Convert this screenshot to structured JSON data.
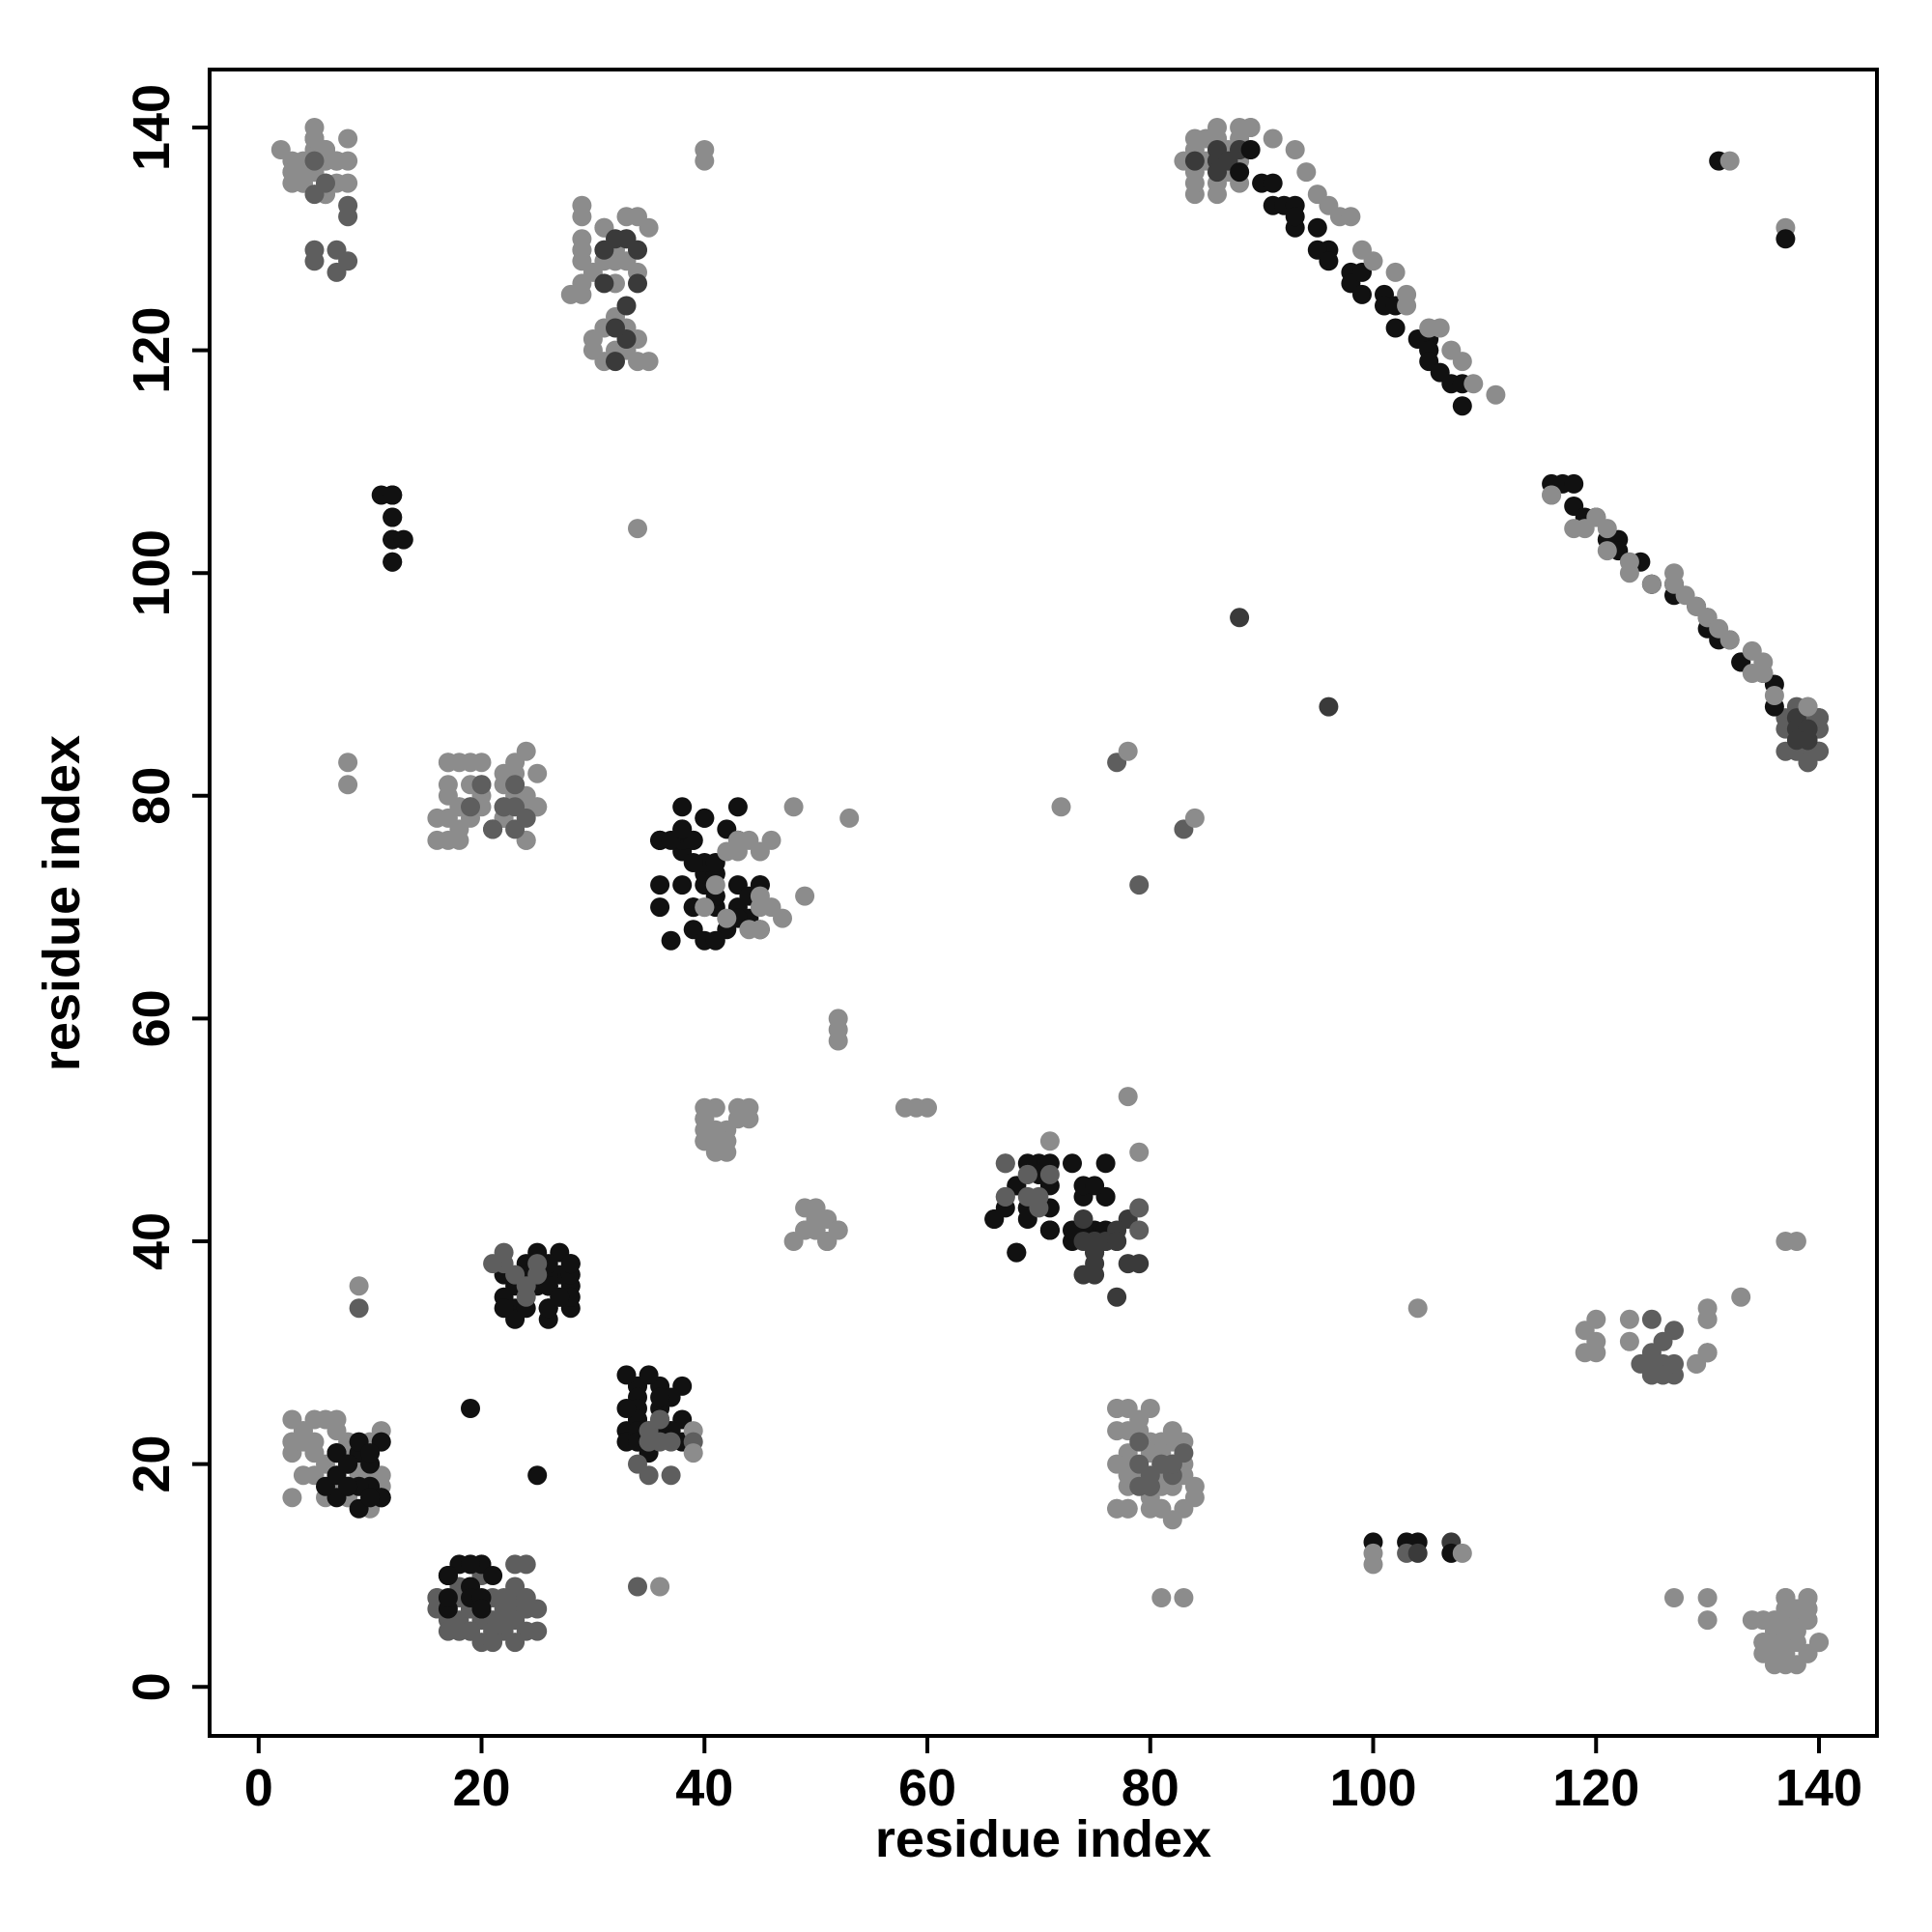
{
  "chart_data": {
    "type": "scatter",
    "title": "",
    "xlabel": "residue index",
    "ylabel": "residue index",
    "xlim": [
      -4.4,
      145.2
    ],
    "ylim": [
      -4.4,
      145.2
    ],
    "xticks": [
      0,
      20,
      40,
      60,
      80,
      100,
      120,
      140
    ],
    "yticks": [
      0,
      20,
      40,
      60,
      80,
      100,
      120,
      140
    ],
    "grid": false,
    "legend": "none",
    "marker": "filled-circle",
    "palette": {
      "black": "#111111",
      "dark": "#3a3a3a",
      "mid": "#5e5e5e",
      "light": "#8c8c8c"
    },
    "clusters": [
      {
        "x": [
          2,
          8
        ],
        "y": [
          134,
          140
        ],
        "count": 38,
        "shade": "light"
      },
      {
        "x": [
          4,
          8
        ],
        "y": [
          127,
          137
        ],
        "count": 10,
        "shade": "mid"
      },
      {
        "x": [
          28,
          35
        ],
        "y": [
          118,
          133
        ],
        "count": 36,
        "shade": "light"
      },
      {
        "x": [
          31,
          34
        ],
        "y": [
          119,
          130
        ],
        "count": 10,
        "shade": "dark"
      },
      {
        "x": [
          11,
          13
        ],
        "y": [
          100,
          108
        ],
        "count": 12,
        "shade": "black"
      },
      {
        "x": [
          16,
          25
        ],
        "y": [
          76,
          84
        ],
        "count": 40,
        "shade": "light"
      },
      {
        "x": [
          19,
          24
        ],
        "y": [
          77,
          82
        ],
        "count": 10,
        "shade": "mid"
      },
      {
        "x": [
          36,
          45
        ],
        "y": [
          67,
          79
        ],
        "count": 45,
        "shade": "black"
      },
      {
        "x": [
          40,
          46
        ],
        "y": [
          67,
          77
        ],
        "count": 15,
        "shade": "light"
      },
      {
        "x": [
          40,
          44
        ],
        "y": [
          48,
          52
        ],
        "count": 18,
        "shade": "light"
      },
      {
        "x": [
          48,
          52
        ],
        "y": [
          40,
          43
        ],
        "count": 18,
        "shade": "light"
      },
      {
        "x": [
          3,
          11
        ],
        "y": [
          16,
          25
        ],
        "count": 45,
        "shade": "light"
      },
      {
        "x": [
          6,
          11
        ],
        "y": [
          16,
          22
        ],
        "count": 22,
        "shade": "black"
      },
      {
        "x": [
          16,
          25
        ],
        "y": [
          4,
          11
        ],
        "count": 50,
        "shade": "mid"
      },
      {
        "x": [
          16,
          21
        ],
        "y": [
          7,
          11
        ],
        "count": 14,
        "shade": "black"
      },
      {
        "x": [
          22,
          28
        ],
        "y": [
          33,
          39
        ],
        "count": 35,
        "shade": "black"
      },
      {
        "x": [
          21,
          26
        ],
        "y": [
          35,
          39
        ],
        "count": 8,
        "shade": "mid"
      },
      {
        "x": [
          33,
          38
        ],
        "y": [
          21,
          28
        ],
        "count": 30,
        "shade": "black"
      },
      {
        "x": [
          33,
          38
        ],
        "y": [
          18,
          24
        ],
        "count": 8,
        "shade": "mid"
      },
      {
        "x": [
          66,
          76
        ],
        "y": [
          39,
          47
        ],
        "count": 35,
        "shade": "black"
      },
      {
        "x": [
          66,
          72
        ],
        "y": [
          43,
          47
        ],
        "count": 10,
        "shade": "mid"
      },
      {
        "x": [
          74,
          79
        ],
        "y": [
          35,
          42
        ],
        "count": 16,
        "shade": "dark"
      },
      {
        "x": [
          76,
          84
        ],
        "y": [
          15,
          25
        ],
        "count": 45,
        "shade": "light"
      },
      {
        "x": [
          79,
          83
        ],
        "y": [
          17,
          22
        ],
        "count": 12,
        "shade": "mid"
      },
      {
        "x": [
          83,
          89
        ],
        "y": [
          134,
          140
        ],
        "count": 32,
        "shade": "light"
      },
      {
        "x": [
          84,
          88
        ],
        "y": [
          136,
          139
        ],
        "count": 8,
        "shade": "dark"
      },
      {
        "x": [
          137,
          140
        ],
        "y": [
          83,
          88
        ],
        "count": 24,
        "shade": "mid"
      },
      {
        "x": [
          137,
          140
        ],
        "y": [
          84,
          87
        ],
        "count": 8,
        "shade": "dark"
      },
      {
        "x": [
          134,
          140
        ],
        "y": [
          2,
          8
        ],
        "count": 45,
        "shade": "light"
      },
      {
        "x": [
          124,
          127
        ],
        "y": [
          28,
          33
        ],
        "count": 14,
        "shade": "mid"
      },
      {
        "x": [
          118,
          124
        ],
        "y": [
          30,
          33
        ],
        "count": 7,
        "shade": "light"
      },
      {
        "x": [
          129,
          131
        ],
        "y": [
          28,
          35
        ],
        "count": 8,
        "shade": "light"
      }
    ],
    "diagonal_bands": [
      {
        "from": [
          88,
          137
        ],
        "to": [
          109,
          116
        ],
        "count": 30,
        "shade": "black"
      },
      {
        "from": [
          92,
          139
        ],
        "to": [
          110,
          116
        ],
        "count": 18,
        "shade": "light"
      },
      {
        "from": [
          115,
          109
        ],
        "to": [
          137,
          89
        ],
        "count": 24,
        "shade": "black"
      },
      {
        "from": [
          116,
          107
        ],
        "to": [
          138,
          89
        ],
        "count": 24,
        "shade": "light"
      }
    ],
    "points": [
      {
        "x": 40,
        "y": 138,
        "shade": "light"
      },
      {
        "x": 40,
        "y": 137,
        "shade": "light"
      },
      {
        "x": 34,
        "y": 104,
        "shade": "light"
      },
      {
        "x": 8,
        "y": 83,
        "shade": "light"
      },
      {
        "x": 8,
        "y": 81,
        "shade": "light"
      },
      {
        "x": 131,
        "y": 137,
        "shade": "black"
      },
      {
        "x": 132,
        "y": 137,
        "shade": "light"
      },
      {
        "x": 137,
        "y": 131,
        "shade": "light"
      },
      {
        "x": 137,
        "y": 130,
        "shade": "black"
      },
      {
        "x": 88,
        "y": 96,
        "shade": "dark"
      },
      {
        "x": 96,
        "y": 88,
        "shade": "dark"
      },
      {
        "x": 48,
        "y": 79,
        "shade": "light"
      },
      {
        "x": 53,
        "y": 78,
        "shade": "light"
      },
      {
        "x": 49,
        "y": 71,
        "shade": "light"
      },
      {
        "x": 47,
        "y": 69,
        "shade": "light"
      },
      {
        "x": 52,
        "y": 60,
        "shade": "light"
      },
      {
        "x": 52,
        "y": 59,
        "shade": "light"
      },
      {
        "x": 52,
        "y": 58,
        "shade": "light"
      },
      {
        "x": 58,
        "y": 52,
        "shade": "light"
      },
      {
        "x": 59,
        "y": 52,
        "shade": "light"
      },
      {
        "x": 60,
        "y": 52,
        "shade": "light"
      },
      {
        "x": 72,
        "y": 79,
        "shade": "light"
      },
      {
        "x": 77,
        "y": 83,
        "shade": "mid"
      },
      {
        "x": 78,
        "y": 84,
        "shade": "light"
      },
      {
        "x": 79,
        "y": 72,
        "shade": "mid"
      },
      {
        "x": 83,
        "y": 77,
        "shade": "mid"
      },
      {
        "x": 84,
        "y": 78,
        "shade": "light"
      },
      {
        "x": 78,
        "y": 53,
        "shade": "light"
      },
      {
        "x": 79,
        "y": 48,
        "shade": "light"
      },
      {
        "x": 71,
        "y": 49,
        "shade": "light"
      },
      {
        "x": 79,
        "y": 43,
        "shade": "mid"
      },
      {
        "x": 79,
        "y": 41,
        "shade": "mid"
      },
      {
        "x": 137,
        "y": 40,
        "shade": "light"
      },
      {
        "x": 138,
        "y": 40,
        "shade": "light"
      },
      {
        "x": 104,
        "y": 34,
        "shade": "light"
      },
      {
        "x": 133,
        "y": 35,
        "shade": "light"
      },
      {
        "x": 9,
        "y": 36,
        "shade": "light"
      },
      {
        "x": 9,
        "y": 34,
        "shade": "mid"
      },
      {
        "x": 19,
        "y": 25,
        "shade": "black"
      },
      {
        "x": 25,
        "y": 19,
        "shade": "black"
      },
      {
        "x": 34,
        "y": 9,
        "shade": "mid"
      },
      {
        "x": 36,
        "y": 9,
        "shade": "light"
      },
      {
        "x": 39,
        "y": 23,
        "shade": "light"
      },
      {
        "x": 39,
        "y": 22,
        "shade": "mid"
      },
      {
        "x": 39,
        "y": 21,
        "shade": "light"
      },
      {
        "x": 81,
        "y": 8,
        "shade": "light"
      },
      {
        "x": 83,
        "y": 8,
        "shade": "light"
      },
      {
        "x": 127,
        "y": 8,
        "shade": "light"
      },
      {
        "x": 130,
        "y": 8,
        "shade": "light"
      },
      {
        "x": 130,
        "y": 6,
        "shade": "light"
      },
      {
        "x": 100,
        "y": 13,
        "shade": "black"
      },
      {
        "x": 100,
        "y": 12,
        "shade": "light"
      },
      {
        "x": 100,
        "y": 11,
        "shade": "light"
      },
      {
        "x": 103,
        "y": 13,
        "shade": "black"
      },
      {
        "x": 104,
        "y": 13,
        "shade": "black"
      },
      {
        "x": 103,
        "y": 12,
        "shade": "mid"
      },
      {
        "x": 104,
        "y": 12,
        "shade": "dark"
      },
      {
        "x": 107,
        "y": 13,
        "shade": "dark"
      },
      {
        "x": 107,
        "y": 12,
        "shade": "black"
      },
      {
        "x": 108,
        "y": 12,
        "shade": "light"
      }
    ]
  }
}
